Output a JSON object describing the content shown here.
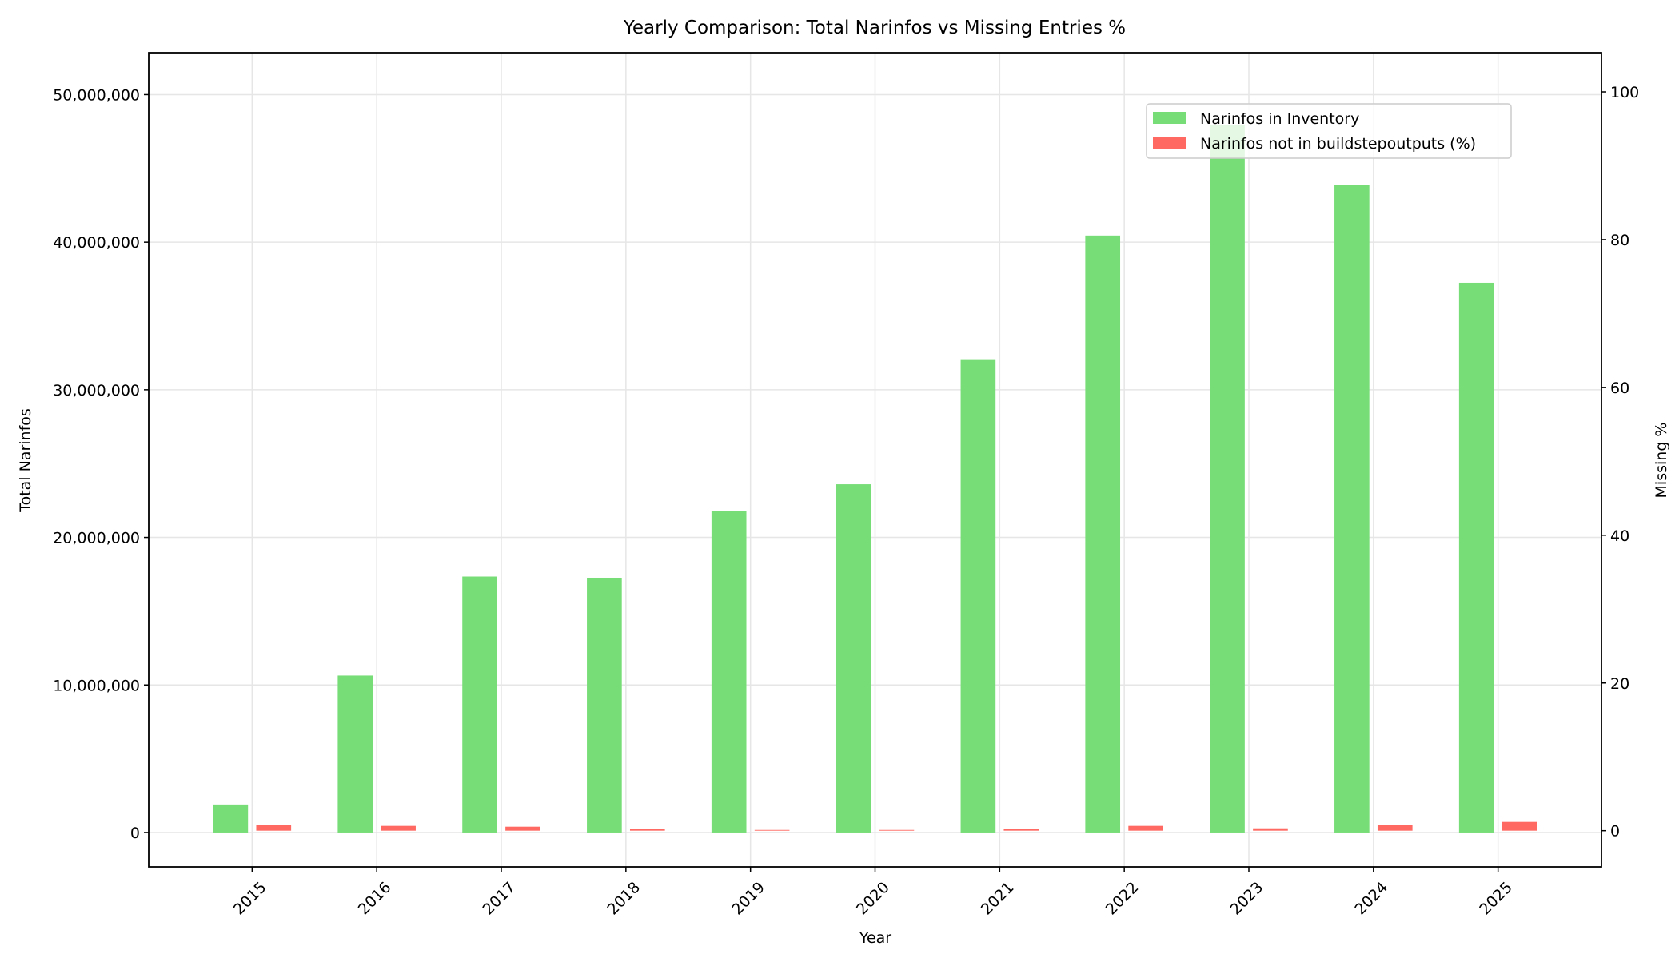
{
  "chart_data": {
    "type": "bar",
    "title": "Yearly Comparison: Total Narinfos vs Missing Entries %",
    "xlabel": "Year",
    "ylabel": "Total Narinfos",
    "ylabel_right": "Missing %",
    "categories": [
      "2015",
      "2016",
      "2017",
      "2018",
      "2019",
      "2020",
      "2021",
      "2022",
      "2023",
      "2024",
      "2025"
    ],
    "series": [
      {
        "name": "Narinfos in Inventory",
        "axis": "left",
        "color": "#77dd77",
        "values": [
          1900000,
          10640000,
          17350000,
          17270000,
          21800000,
          23600000,
          32070000,
          40450000,
          47960000,
          43900000,
          37250000
        ]
      },
      {
        "name": "Narinfos not in buildstepoutputs (%)",
        "axis": "right",
        "color": "#ff6961",
        "values": [
          0.76,
          0.65,
          0.54,
          0.22,
          0.1,
          0.1,
          0.22,
          0.65,
          0.32,
          0.76,
          1.19
        ]
      }
    ],
    "ylim": [
      -2330000,
      52840000
    ],
    "ylim_right": [
      -4.9,
      105.3
    ],
    "yticks": [
      0,
      10000000,
      20000000,
      30000000,
      40000000,
      50000000
    ],
    "ytick_labels": [
      "0",
      "10,000,000",
      "20,000,000",
      "30,000,000",
      "40,000,000",
      "50,000,000"
    ],
    "yticks_right": [
      0,
      20,
      40,
      60,
      80,
      100
    ],
    "ytick_labels_right": [
      "0",
      "20",
      "40",
      "60",
      "80",
      "100"
    ],
    "grid": true,
    "legend_placement": "upper-right"
  }
}
